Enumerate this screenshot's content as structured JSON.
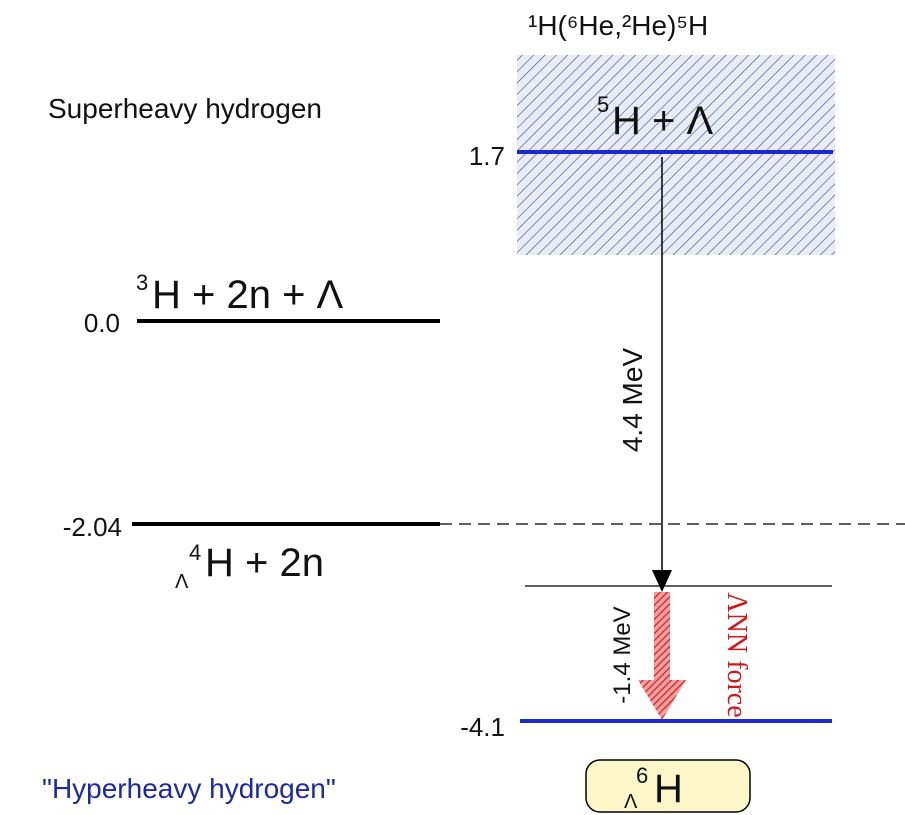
{
  "reaction": "¹H(⁶He,²He)⁵H",
  "upper_caption": "Superheavy hydrogen",
  "lower_caption": "\"Hyperheavy hydrogen\"",
  "states": [
    {
      "mass": "5",
      "body": "H + Λ",
      "energy": "1.7"
    },
    {
      "mass": "3",
      "body": "H + 2n + Λ",
      "energy": "0.0"
    },
    {
      "mass": "4",
      "sub": "Λ",
      "body": "H + 2n",
      "energy": "-2.04"
    },
    {
      "mass": "6",
      "sub": "Λ",
      "body": "H",
      "energy": "-4.1"
    }
  ],
  "arrows": [
    {
      "label": "4.4 MeV"
    },
    {
      "label": "-1.4 MeV"
    }
  ],
  "force_label": "ΛNN force"
}
